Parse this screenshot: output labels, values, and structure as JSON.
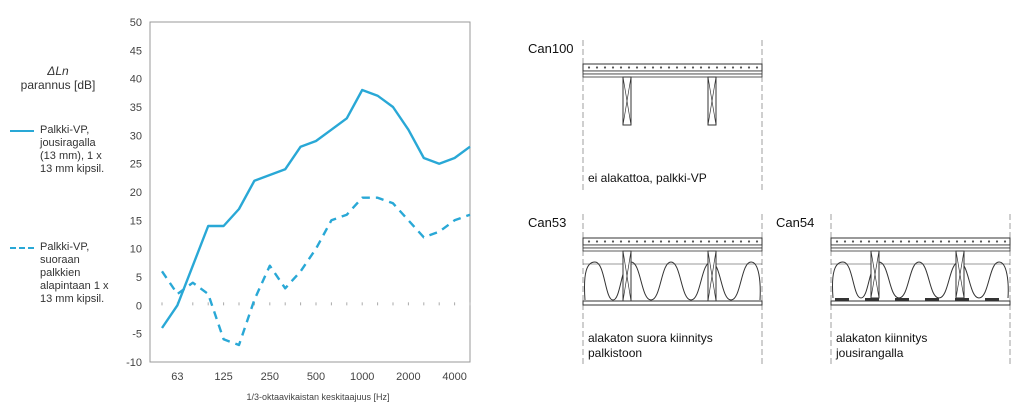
{
  "chart_data": {
    "type": "line",
    "ylabel_symbol": "ΔLn",
    "ylabel": "parannus [dB]",
    "xlabel": "1/3-oktaavikaistan  keskitaajuus  [Hz]",
    "x_ticks": [
      "63",
      "125",
      "250",
      "500",
      "1000",
      "2000",
      "4000"
    ],
    "ylim": [
      -10,
      50
    ],
    "y_ticks": [
      -10,
      -5,
      0,
      5,
      10,
      15,
      20,
      25,
      30,
      35,
      40,
      45,
      50
    ],
    "grid": true,
    "x": [
      50,
      63,
      80,
      100,
      125,
      160,
      200,
      250,
      315,
      400,
      500,
      630,
      800,
      1000,
      1250,
      1600,
      2000,
      2500,
      3150,
      4000,
      5000
    ],
    "series": [
      {
        "name": "Palkki-VP, jousiragalla (13 mm), 1 x 13 mm kipsil.",
        "style": "solid",
        "color": "#29a8d6",
        "values": [
          -4,
          0,
          7,
          14,
          14,
          17,
          22,
          23,
          24,
          28,
          29,
          31,
          33,
          38,
          37,
          35,
          31,
          26,
          25,
          26,
          28
        ]
      },
      {
        "name": "Palkki-VP, suoraan palkkien alapintaan 1 x 13 mm kipsil.",
        "style": "dashed",
        "color": "#29a8d6",
        "values": [
          6,
          2,
          4,
          2,
          -6,
          -7,
          1,
          7,
          3,
          6,
          10,
          15,
          16,
          19,
          19,
          18,
          15,
          12,
          13,
          15,
          16
        ]
      }
    ]
  },
  "diagrams": [
    {
      "title": "Can100",
      "caption_lines": [
        "ei alakattoa, palkki-VP"
      ]
    },
    {
      "title": "Can53",
      "caption_lines": [
        "alakaton suora kiinnitys",
        "palkistoon"
      ]
    },
    {
      "title": "Can54",
      "caption_lines": [
        "alakaton kiinnitys",
        "jousirangalla"
      ]
    }
  ]
}
